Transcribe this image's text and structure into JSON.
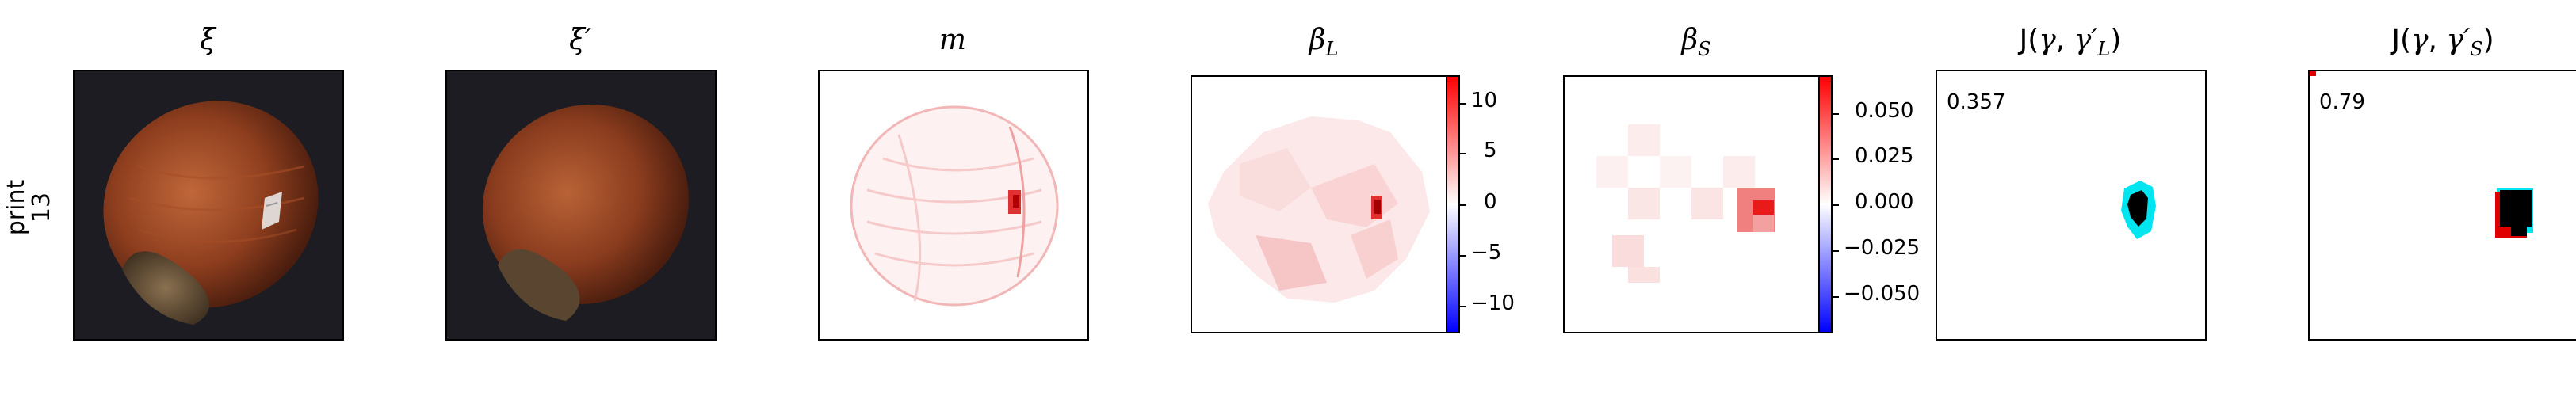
{
  "row_label": {
    "line1": "print",
    "line2": "13"
  },
  "panels": {
    "xi": {
      "title": "ξ"
    },
    "xi_prime": {
      "title": "ξ′"
    },
    "m": {
      "title": "m"
    },
    "beta_l": {
      "title": "β",
      "sub": "L",
      "colorbar_ticks": [
        "10",
        "5",
        "0",
        "−5",
        "−10"
      ],
      "colors": {
        "max": "#ff0000",
        "mid": "#ffffff",
        "min": "#0000ff"
      }
    },
    "beta_s": {
      "title": "β",
      "sub": "S",
      "colorbar_ticks": [
        "0.050",
        "0.025",
        "0.000",
        "−0.025",
        "−0.050"
      ],
      "colors": {
        "max": "#ff0000",
        "mid": "#ffffff",
        "min": "#0000ff"
      }
    },
    "j_l": {
      "title_pre": "J(",
      "title_gamma": "γ",
      "title_mid": ", ",
      "title_gamma2": "γ′",
      "title_sub": "L",
      "title_post": ")",
      "score": "0.357"
    },
    "j_s": {
      "title_pre": "J(",
      "title_gamma": "γ",
      "title_mid": ", ",
      "title_gamma2": "γ′",
      "title_sub": "S",
      "title_post": ")",
      "score": "0.79"
    }
  },
  "colors": {
    "overlay_cyan": "#00e5f0",
    "overlay_red": "#e00000",
    "overlay_black": "#000000",
    "photo_bg": "#1c1c22"
  }
}
